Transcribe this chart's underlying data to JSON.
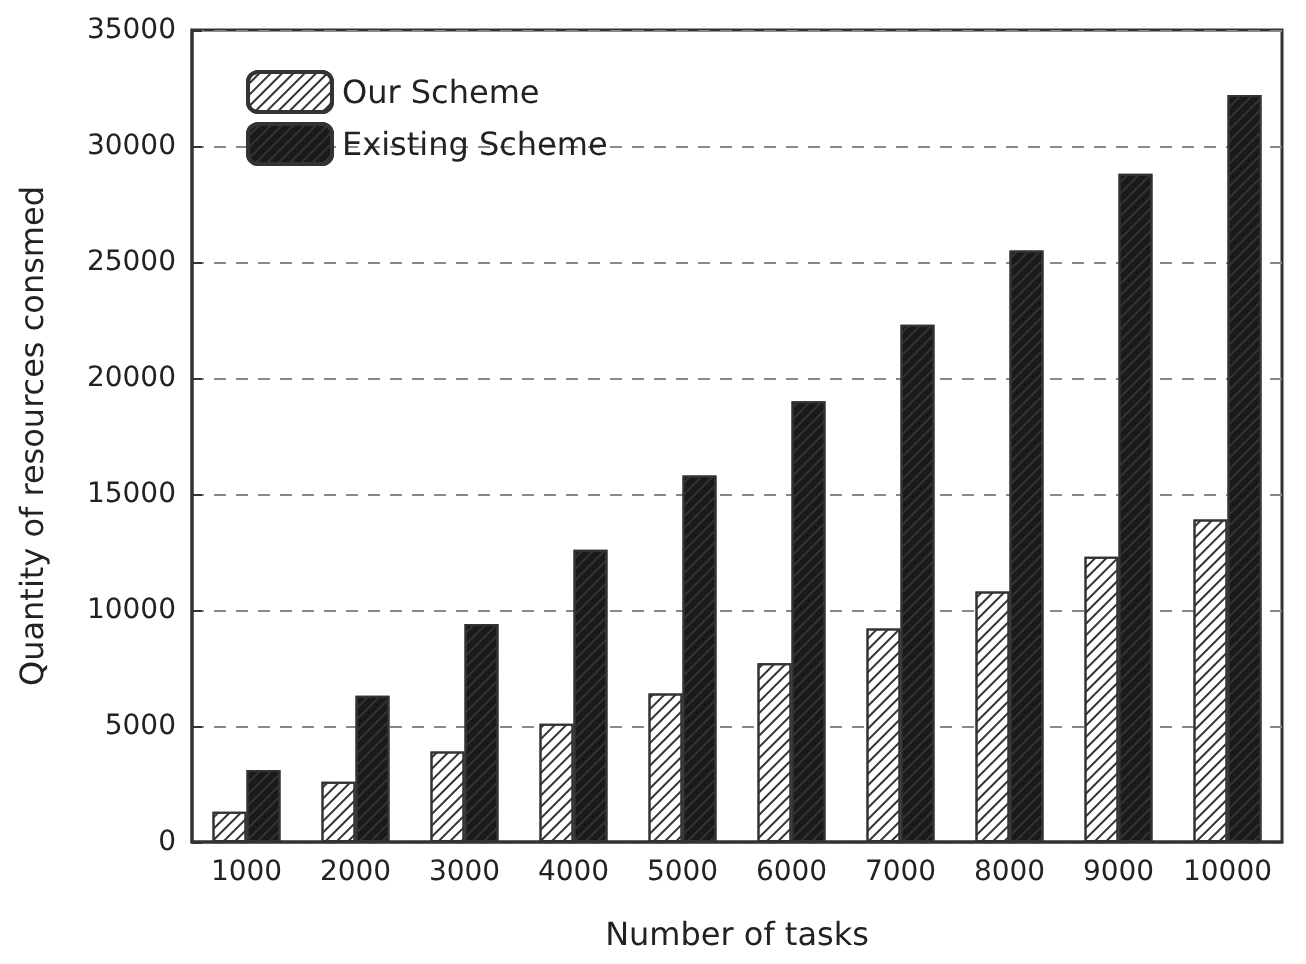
{
  "chart_data": {
    "type": "bar",
    "xlabel": "Number of tasks",
    "ylabel": "Quantity of resources consmed",
    "categories": [
      "1000",
      "2000",
      "3000",
      "4000",
      "5000",
      "6000",
      "7000",
      "8000",
      "9000",
      "10000"
    ],
    "series": [
      {
        "name": "Our Scheme",
        "color": "#ffffff",
        "values": [
          1300,
          2600,
          3900,
          5100,
          6400,
          7700,
          9200,
          10800,
          12300,
          13900
        ]
      },
      {
        "name": "Existing Scheme",
        "color": "#1a1a1a",
        "values": [
          3100,
          6300,
          9400,
          12600,
          15800,
          19000,
          22300,
          25500,
          28800,
          32200
        ]
      }
    ],
    "ylim": [
      0,
      35000
    ],
    "yticks": [
      0,
      5000,
      10000,
      15000,
      20000,
      25000,
      30000,
      35000
    ],
    "grid": "y",
    "legend": "top left"
  }
}
